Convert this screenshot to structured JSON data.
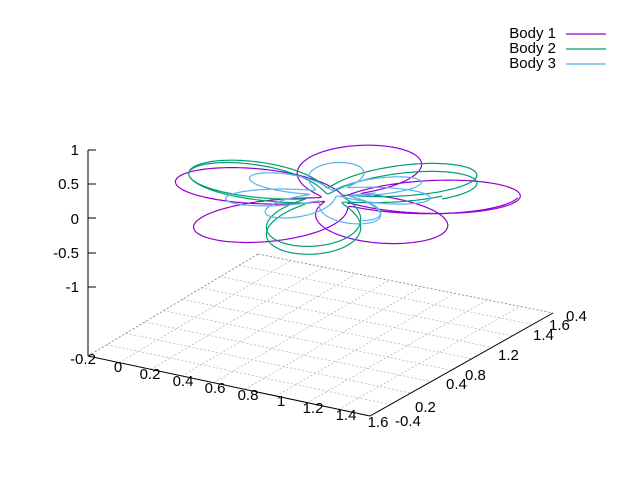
{
  "chart_data": {
    "type": "line",
    "subtype": "3d-parametric-trajectories",
    "title": "",
    "xlabel": "",
    "ylabel": "",
    "zlabel": "",
    "grid": true,
    "grid_on": "base plane (x-y)",
    "legend_placement": "top-right",
    "xlim": [
      -0.2,
      1.6
    ],
    "ylim": [
      -0.4,
      1.6
    ],
    "zlim": [
      -1,
      1
    ],
    "x_ticks": [
      "-0.2",
      "0",
      "0.2",
      "0.4",
      "0.6",
      "0.8",
      "1",
      "1.2",
      "1.4",
      "1.6"
    ],
    "y_ticks": [
      "-0.4",
      "0.2",
      "0.4",
      "0.8",
      "1.2",
      "1.4",
      "1.6"
    ],
    "z_ticks": [
      "1",
      "0.5",
      "0",
      "-0.5",
      "-1"
    ],
    "series": [
      {
        "name": "Body 1",
        "color": "#9400d3"
      },
      {
        "name": "Body 2",
        "color": "#009e73"
      },
      {
        "name": "Body 3",
        "color": "#56b4e9"
      }
    ]
  }
}
